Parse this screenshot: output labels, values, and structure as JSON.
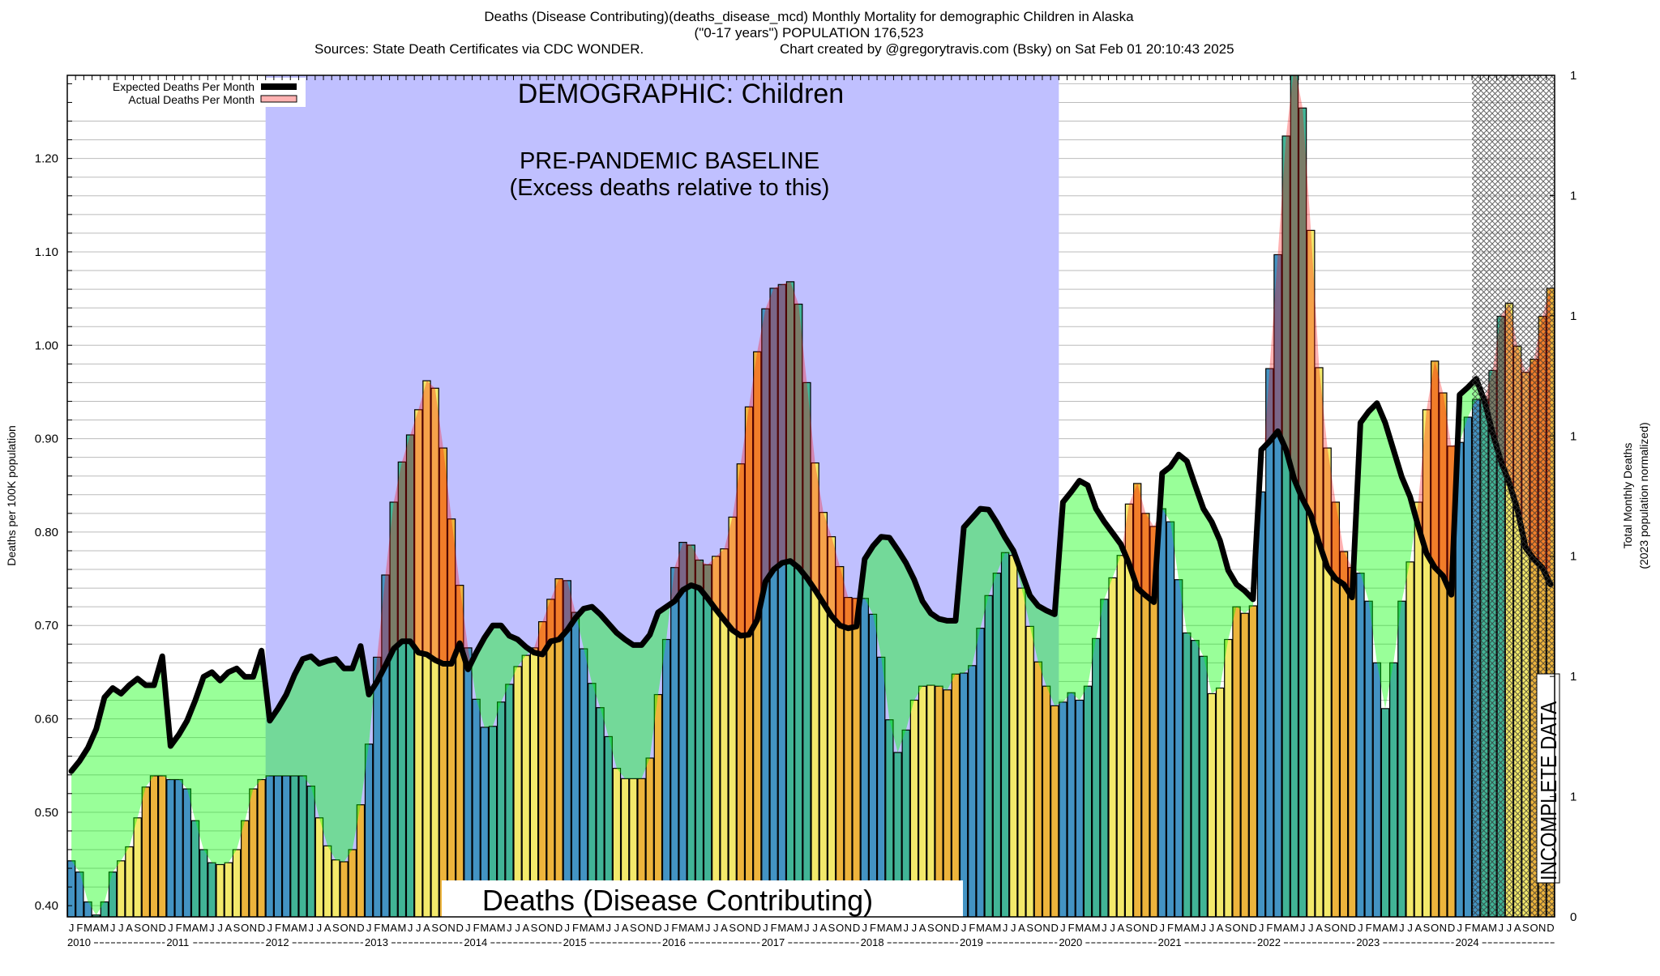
{
  "title": {
    "line1": "Deaths (Disease Contributing)(deaths_disease_mcd) Monthly Mortality for demographic Children in Alaska",
    "line2": "(\"0-17 years\") POPULATION 176,523",
    "sources": "Sources: State Death Certificates via CDC WONDER.",
    "credit": "Chart created by @gregorytravis.com (Bsky) on Sat Feb 01 20:10:43 2025"
  },
  "legend": {
    "expected_label": "Expected Deaths Per Month",
    "actual_label": "Actual Deaths Per Month"
  },
  "annotations": {
    "demographic": "DEMOGRAPHIC: Children",
    "baseline_title": "PRE-PANDEMIC BASELINE",
    "baseline_sub": "(Excess deaths relative to this)",
    "metric": "Deaths (Disease Contributing)",
    "incomplete": "INCOMPLETE DATA"
  },
  "colors": {
    "baseline_region": "#c0c0ff",
    "q1_bar": "#4393c3",
    "q2_bar": "#41b496",
    "q3_bar": "#f3e96b",
    "q4_bar": "#edb43c",
    "deficit_fill": "#99ff99",
    "excess_fill": "#ffb2b2",
    "expected_line": "#000000"
  },
  "chart_data": {
    "type": "bar",
    "title": "Deaths (Disease Contributing)(deaths_disease_mcd) Monthly Mortality for demographic Children in Alaska",
    "ylabel": "Deaths per 100K population",
    "y2label": [
      "Total Monthly Deaths",
      "(2023 population normalized)"
    ],
    "ylim": [
      0.388,
      1.289
    ],
    "yticks": [
      "0.40",
      "0.50",
      "0.60",
      "0.70",
      "0.80",
      "0.90",
      "1.00",
      "1.10",
      "1.20"
    ],
    "y_minor_step": 0.02,
    "y2ticks": [
      "1",
      "1",
      "1",
      "1",
      "1",
      "1",
      "1",
      "0"
    ],
    "grid": true,
    "legend_position": "top-left",
    "month_labels": [
      "J",
      "F",
      "M",
      "A",
      "M",
      "J",
      "J",
      "A",
      "S",
      "O",
      "N",
      "D"
    ],
    "years": [
      "2010",
      "2011",
      "2012",
      "2013",
      "2014",
      "2015",
      "2016",
      "2017",
      "2018",
      "2019",
      "2020",
      "2021",
      "2022",
      "2023",
      "2024"
    ],
    "baseline_period": [
      "2012-01",
      "2019-12"
    ],
    "incomplete_from": "2024-03",
    "series": [
      {
        "name": "Actual Deaths Per Month",
        "values": [
          0.448,
          0.436,
          0.404,
          0.39,
          0.404,
          0.436,
          0.448,
          0.463,
          0.494,
          0.527,
          0.539,
          0.539,
          0.535,
          0.535,
          0.525,
          0.491,
          0.46,
          0.446,
          0.444,
          0.446,
          0.46,
          0.491,
          0.525,
          0.535,
          0.539,
          0.539,
          0.539,
          0.539,
          0.539,
          0.528,
          0.494,
          0.464,
          0.449,
          0.447,
          0.46,
          0.508,
          0.573,
          0.666,
          0.754,
          0.832,
          0.875,
          0.904,
          0.931,
          0.962,
          0.954,
          0.89,
          0.814,
          0.743,
          0.676,
          0.621,
          0.591,
          0.592,
          0.618,
          0.637,
          0.656,
          0.668,
          0.676,
          0.704,
          0.728,
          0.75,
          0.748,
          0.714,
          0.675,
          0.638,
          0.612,
          0.581,
          0.547,
          0.536,
          0.536,
          0.536,
          0.558,
          0.626,
          0.685,
          0.762,
          0.789,
          0.786,
          0.77,
          0.765,
          0.774,
          0.782,
          0.816,
          0.873,
          0.934,
          0.993,
          1.039,
          1.061,
          1.065,
          1.068,
          1.044,
          0.96,
          0.874,
          0.821,
          0.795,
          0.763,
          0.73,
          0.729,
          0.729,
          0.712,
          0.666,
          0.599,
          0.564,
          0.588,
          0.62,
          0.635,
          0.636,
          0.635,
          0.631,
          0.648,
          0.649,
          0.657,
          0.697,
          0.732,
          0.756,
          0.778,
          0.775,
          0.74,
          0.699,
          0.661,
          0.635,
          0.614,
          0.618,
          0.628,
          0.62,
          0.635,
          0.686,
          0.728,
          0.751,
          0.775,
          0.83,
          0.852,
          0.82,
          0.806,
          0.825,
          0.811,
          0.749,
          0.692,
          0.684,
          0.667,
          0.627,
          0.633,
          0.685,
          0.72,
          0.713,
          0.721,
          0.843,
          0.975,
          1.097,
          1.224,
          1.3,
          1.254,
          1.123,
          0.976,
          0.89,
          0.832,
          0.779,
          0.762,
          0.756,
          0.726,
          0.66,
          0.611,
          0.66,
          0.726,
          0.768,
          0.832,
          0.931,
          0.983,
          0.949,
          0.892,
          0.896,
          0.923,
          0.942,
          0.942,
          0.973,
          1.031,
          1.045,
          0.999,
          0.971,
          0.985,
          1.031,
          1.061
        ]
      },
      {
        "name": "Expected Deaths Per Month",
        "values": [
          0.544,
          0.555,
          0.569,
          0.589,
          0.623,
          0.633,
          0.627,
          0.636,
          0.643,
          0.636,
          0.636,
          0.667,
          0.571,
          0.583,
          0.598,
          0.62,
          0.645,
          0.65,
          0.641,
          0.65,
          0.654,
          0.645,
          0.645,
          0.673,
          0.598,
          0.611,
          0.626,
          0.647,
          0.664,
          0.667,
          0.659,
          0.662,
          0.664,
          0.654,
          0.654,
          0.678,
          0.626,
          0.64,
          0.657,
          0.675,
          0.683,
          0.683,
          0.671,
          0.669,
          0.663,
          0.659,
          0.659,
          0.681,
          0.653,
          0.671,
          0.687,
          0.7,
          0.7,
          0.689,
          0.685,
          0.677,
          0.671,
          0.669,
          0.683,
          0.685,
          0.695,
          0.708,
          0.718,
          0.72,
          0.712,
          0.702,
          0.692,
          0.685,
          0.679,
          0.679,
          0.69,
          0.714,
          0.72,
          0.726,
          0.738,
          0.743,
          0.74,
          0.729,
          0.717,
          0.706,
          0.695,
          0.689,
          0.69,
          0.706,
          0.747,
          0.76,
          0.767,
          0.769,
          0.762,
          0.751,
          0.738,
          0.724,
          0.71,
          0.7,
          0.697,
          0.699,
          0.771,
          0.785,
          0.795,
          0.794,
          0.781,
          0.767,
          0.749,
          0.726,
          0.713,
          0.707,
          0.705,
          0.705,
          0.805,
          0.815,
          0.825,
          0.824,
          0.81,
          0.794,
          0.78,
          0.756,
          0.732,
          0.721,
          0.716,
          0.712,
          0.832,
          0.843,
          0.855,
          0.85,
          0.825,
          0.811,
          0.799,
          0.787,
          0.766,
          0.74,
          0.732,
          0.725,
          0.863,
          0.87,
          0.883,
          0.876,
          0.85,
          0.825,
          0.811,
          0.791,
          0.759,
          0.744,
          0.737,
          0.728,
          0.888,
          0.897,
          0.908,
          0.888,
          0.856,
          0.835,
          0.818,
          0.788,
          0.762,
          0.75,
          0.744,
          0.73,
          0.917,
          0.929,
          0.938,
          0.917,
          0.888,
          0.859,
          0.838,
          0.806,
          0.777,
          0.762,
          0.753,
          0.733,
          0.947,
          0.955,
          0.964,
          0.941,
          0.906,
          0.876,
          0.853,
          0.824,
          0.783,
          0.771,
          0.762,
          0.744
        ]
      }
    ]
  }
}
